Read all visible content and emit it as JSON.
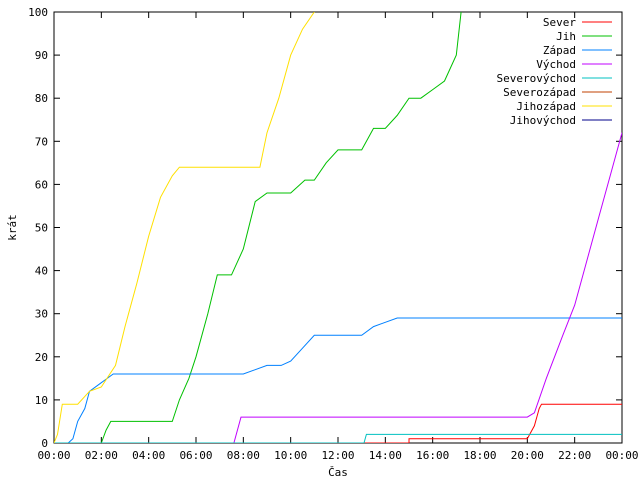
{
  "chart_data": {
    "type": "line",
    "title": "",
    "xlabel": "Čas",
    "ylabel": "krát",
    "xlim": [
      0,
      24
    ],
    "ylim": [
      0,
      100
    ],
    "grid": false,
    "legend_position": "top-right",
    "x_ticks": [
      0,
      2,
      4,
      6,
      8,
      10,
      12,
      14,
      16,
      18,
      20,
      22,
      24
    ],
    "x_tick_labels": [
      "00:00",
      "02:00",
      "04:00",
      "06:00",
      "08:00",
      "10:00",
      "12:00",
      "14:00",
      "16:00",
      "18:00",
      "20:00",
      "22:00",
      "00:00"
    ],
    "y_ticks": [
      0,
      10,
      20,
      30,
      40,
      50,
      60,
      70,
      80,
      90,
      100
    ],
    "y_tick_labels": [
      "0",
      "10",
      "20",
      "30",
      "40",
      "50",
      "60",
      "70",
      "80",
      "90",
      "100"
    ],
    "series": [
      {
        "name": "Sever",
        "color": "#ff0000",
        "x": [
          0,
          15.0,
          15.0,
          20.0,
          20.3,
          20.5,
          20.6,
          24
        ],
        "y": [
          0,
          0,
          1,
          1,
          4,
          8,
          9,
          9
        ]
      },
      {
        "name": "Jih",
        "color": "#00c000",
        "x": [
          0,
          2.0,
          2.2,
          2.4,
          4.0,
          5.0,
          5.3,
          5.7,
          6.0,
          6.5,
          6.9,
          7.5,
          8.0,
          8.5,
          9.0,
          10.0,
          10.6,
          11.0,
          11.5,
          12.0,
          12.5,
          13.0,
          13.5,
          14.0,
          14.5,
          15.0,
          15.5,
          16.0,
          16.5,
          17.0,
          17.2
        ],
        "y": [
          0,
          0,
          3,
          5,
          5,
          5,
          10,
          15,
          20,
          30,
          39,
          39,
          45,
          56,
          58,
          58,
          61,
          61,
          65,
          68,
          68,
          68,
          73,
          73,
          76,
          80,
          80,
          82,
          84,
          90,
          100
        ]
      },
      {
        "name": "Západ",
        "color": "#0080ff",
        "x": [
          0,
          0.6,
          0.8,
          1.0,
          1.3,
          1.5,
          2.0,
          2.5,
          3.0,
          4.0,
          5.0,
          6.0,
          7.0,
          8.0,
          9.0,
          9.6,
          10.0,
          10.5,
          11.0,
          12.0,
          13.0,
          13.5,
          14.0,
          14.5,
          16.0,
          18.0,
          20.0,
          22.0,
          24
        ],
        "y": [
          0,
          0,
          1,
          5,
          8,
          12,
          14,
          16,
          16,
          16,
          16,
          16,
          16,
          16,
          18,
          18,
          19,
          22,
          25,
          25,
          25,
          27,
          28,
          29,
          29,
          29,
          29,
          29,
          29
        ]
      },
      {
        "name": "Východ",
        "color": "#c000ff",
        "x": [
          0,
          7.6,
          7.9,
          8.0,
          12.0,
          16.0,
          19.0,
          20.0,
          20.3,
          20.8,
          21.5,
          22.0,
          22.5,
          23.0,
          23.5,
          24
        ],
        "y": [
          0,
          0,
          6,
          6,
          6,
          6,
          6,
          6,
          7,
          15,
          25,
          32,
          42,
          52,
          62,
          72
        ]
      },
      {
        "name": "Severovýchod",
        "color": "#00c0c0",
        "x": [
          0,
          13.1,
          13.2,
          15.0,
          20.0,
          22.0,
          24
        ],
        "y": [
          0,
          0,
          2,
          2,
          2,
          2,
          2
        ]
      },
      {
        "name": "Severozápad",
        "color": "#c04000",
        "x": [],
        "y": []
      },
      {
        "name": "Jihozápad",
        "color": "#ffe000",
        "x": [
          0,
          0.15,
          0.35,
          0.6,
          1.0,
          1.5,
          2.0,
          2.6,
          3.0,
          3.5,
          4.0,
          4.5,
          5.0,
          5.3,
          6.0,
          7.0,
          8.0,
          8.7,
          9.0,
          9.5,
          10.0,
          10.5,
          11.0
        ],
        "y": [
          0,
          2,
          9,
          9,
          9,
          12,
          13,
          18,
          27,
          37,
          48,
          57,
          62,
          64,
          64,
          64,
          64,
          64,
          72,
          80,
          90,
          96,
          100
        ]
      },
      {
        "name": "Jihovýchod",
        "color": "#00008b",
        "x": [],
        "y": []
      }
    ]
  }
}
